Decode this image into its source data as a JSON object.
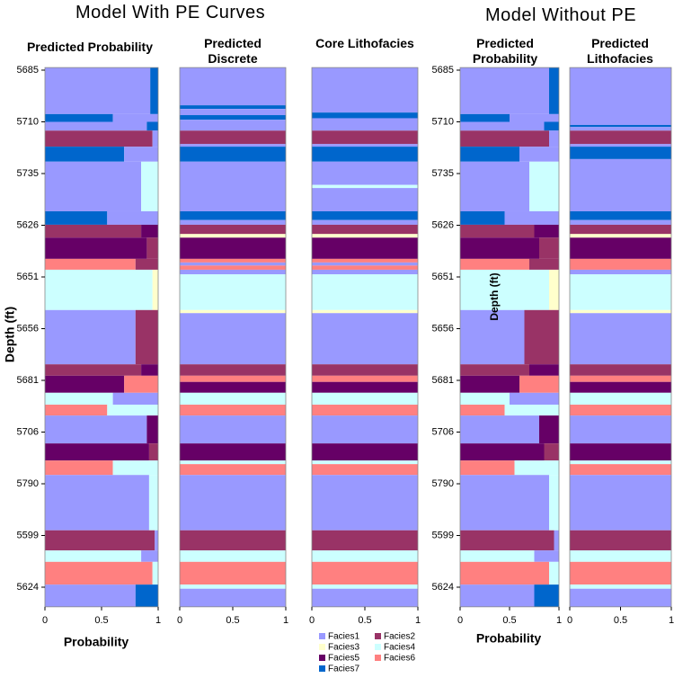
{
  "chart_data": {
    "type": "facies-log",
    "left_title": "Model With PE Curves",
    "right_title": "Model Without PE",
    "y_axis_label": "Depth (ft)",
    "x_axis_label": "Probability",
    "depth_labels": [
      "5685",
      "5710",
      "5735",
      "5626",
      "5651",
      "5656",
      "5681",
      "5706",
      "5790",
      "5599",
      "5624"
    ],
    "xlim": [
      0,
      1
    ],
    "xticks": [
      0,
      0.5,
      1
    ],
    "facies": [
      {
        "name": "Facies1",
        "color": "#9999ff"
      },
      {
        "name": "Facies2",
        "color": "#993366"
      },
      {
        "name": "Facies3",
        "color": "#ffffcc"
      },
      {
        "name": "Facies4",
        "color": "#ccffff"
      },
      {
        "name": "Facies5",
        "color": "#660066"
      },
      {
        "name": "Facies6",
        "color": "#ff8080"
      },
      {
        "name": "Facies7",
        "color": "#0066cc"
      }
    ],
    "panels": [
      {
        "title": "Predicted Probability",
        "kind": "probability",
        "bands": [
          [
            0,
            -0.05,
            0.85,
            0.93,
            6
          ],
          [
            6,
            0.85,
            1.0,
            0.6,
            0
          ],
          [
            0,
            1.0,
            1.17,
            0.9,
            6
          ],
          [
            1,
            1.17,
            1.48,
            0.95,
            0
          ],
          [
            6,
            1.48,
            1.77,
            0.7,
            0
          ],
          [
            0,
            1.77,
            2.73,
            0.85,
            3
          ],
          [
            6,
            2.73,
            2.99,
            0.55,
            0
          ],
          [
            1,
            2.99,
            3.24,
            0.85,
            4
          ],
          [
            4,
            3.24,
            3.65,
            0.9,
            1
          ],
          [
            5,
            3.65,
            3.86,
            0.8,
            1
          ],
          [
            3,
            3.86,
            4.64,
            0.95,
            2
          ],
          [
            0,
            4.64,
            5.69,
            0.8,
            1
          ],
          [
            1,
            5.69,
            5.91,
            0.85,
            4
          ],
          [
            4,
            5.91,
            6.24,
            0.7,
            5
          ],
          [
            3,
            6.24,
            6.47,
            0.6,
            0
          ],
          [
            5,
            6.47,
            6.68,
            0.55,
            3
          ],
          [
            0,
            6.68,
            7.22,
            0.9,
            4
          ],
          [
            4,
            7.22,
            7.55,
            0.92,
            1
          ],
          [
            5,
            7.55,
            7.83,
            0.6,
            3
          ],
          [
            0,
            7.83,
            8.9,
            0.92,
            3
          ],
          [
            1,
            8.9,
            9.29,
            0.97,
            0
          ],
          [
            3,
            9.29,
            9.51,
            0.85,
            0
          ],
          [
            5,
            9.51,
            9.95,
            0.95,
            3
          ],
          [
            0,
            9.95,
            10.38,
            0.8,
            6
          ]
        ]
      },
      {
        "title": "Predicted Discrete",
        "kind": "discrete",
        "bands": [
          [
            0,
            -0.05,
            0.68
          ],
          [
            6,
            0.68,
            0.75
          ],
          [
            0,
            0.75,
            0.87
          ],
          [
            6,
            0.87,
            0.96
          ],
          [
            0,
            0.96,
            1.17
          ],
          [
            1,
            1.17,
            1.43
          ],
          [
            0,
            1.43,
            1.48
          ],
          [
            6,
            1.48,
            1.77
          ],
          [
            0,
            1.77,
            2.73
          ],
          [
            6,
            2.73,
            2.9
          ],
          [
            0,
            2.9,
            2.99
          ],
          [
            1,
            2.99,
            3.17
          ],
          [
            2,
            3.17,
            3.24
          ],
          [
            4,
            3.24,
            3.65
          ],
          [
            5,
            3.65,
            3.72
          ],
          [
            0,
            3.72,
            3.78
          ],
          [
            5,
            3.78,
            3.86
          ],
          [
            0,
            3.86,
            3.95
          ],
          [
            3,
            3.95,
            4.64
          ],
          [
            2,
            4.64,
            4.7
          ],
          [
            0,
            4.7,
            5.69
          ],
          [
            1,
            5.69,
            5.91
          ],
          [
            5,
            5.91,
            6.03
          ],
          [
            4,
            6.03,
            6.24
          ],
          [
            3,
            6.24,
            6.47
          ],
          [
            5,
            6.47,
            6.68
          ],
          [
            0,
            6.68,
            7.22
          ],
          [
            4,
            7.22,
            7.55
          ],
          [
            3,
            7.55,
            7.62
          ],
          [
            5,
            7.62,
            7.83
          ],
          [
            0,
            7.83,
            8.9
          ],
          [
            1,
            8.9,
            9.29
          ],
          [
            3,
            9.29,
            9.51
          ],
          [
            5,
            9.51,
            9.95
          ],
          [
            3,
            9.95,
            10.03
          ],
          [
            0,
            10.03,
            10.38
          ]
        ]
      },
      {
        "title": "Core Lithofacies",
        "kind": "discrete",
        "bands": [
          [
            0,
            -0.05,
            0.82
          ],
          [
            6,
            0.82,
            0.93
          ],
          [
            0,
            0.93,
            1.17
          ],
          [
            1,
            1.17,
            1.43
          ],
          [
            0,
            1.43,
            1.48
          ],
          [
            6,
            1.48,
            1.77
          ],
          [
            0,
            1.77,
            2.22
          ],
          [
            3,
            2.22,
            2.28
          ],
          [
            0,
            2.28,
            2.73
          ],
          [
            6,
            2.73,
            2.9
          ],
          [
            0,
            2.9,
            2.99
          ],
          [
            1,
            2.99,
            3.17
          ],
          [
            2,
            3.17,
            3.24
          ],
          [
            4,
            3.24,
            3.65
          ],
          [
            5,
            3.65,
            3.72
          ],
          [
            0,
            3.72,
            3.78
          ],
          [
            5,
            3.78,
            3.86
          ],
          [
            0,
            3.86,
            3.95
          ],
          [
            3,
            3.95,
            4.64
          ],
          [
            2,
            4.64,
            4.7
          ],
          [
            0,
            4.7,
            5.69
          ],
          [
            1,
            5.69,
            5.91
          ],
          [
            5,
            5.91,
            6.03
          ],
          [
            4,
            6.03,
            6.24
          ],
          [
            3,
            6.24,
            6.47
          ],
          [
            5,
            6.47,
            6.68
          ],
          [
            0,
            6.68,
            7.22
          ],
          [
            4,
            7.22,
            7.55
          ],
          [
            3,
            7.55,
            7.62
          ],
          [
            5,
            7.62,
            7.83
          ],
          [
            0,
            7.83,
            8.9
          ],
          [
            1,
            8.9,
            9.29
          ],
          [
            3,
            9.29,
            9.51
          ],
          [
            5,
            9.51,
            9.95
          ],
          [
            3,
            9.95,
            10.03
          ],
          [
            0,
            10.03,
            10.38
          ]
        ]
      },
      {
        "title": "Predicted Probability",
        "kind": "probability",
        "bands": [
          [
            0,
            -0.05,
            0.85,
            0.9,
            6
          ],
          [
            6,
            0.85,
            1.0,
            0.5,
            0
          ],
          [
            0,
            1.0,
            1.17,
            0.85,
            6
          ],
          [
            1,
            1.17,
            1.48,
            0.9,
            0
          ],
          [
            6,
            1.48,
            1.77,
            0.6,
            0
          ],
          [
            0,
            1.77,
            2.73,
            0.7,
            3
          ],
          [
            6,
            2.73,
            2.99,
            0.45,
            0
          ],
          [
            1,
            2.99,
            3.24,
            0.75,
            4
          ],
          [
            4,
            3.24,
            3.65,
            0.8,
            1
          ],
          [
            5,
            3.65,
            3.86,
            0.7,
            1
          ],
          [
            3,
            3.86,
            4.64,
            0.9,
            2
          ],
          [
            0,
            4.64,
            5.69,
            0.65,
            1
          ],
          [
            1,
            5.69,
            5.91,
            0.7,
            4
          ],
          [
            4,
            5.91,
            6.24,
            0.6,
            5
          ],
          [
            3,
            6.24,
            6.47,
            0.5,
            0
          ],
          [
            5,
            6.47,
            6.68,
            0.45,
            3
          ],
          [
            0,
            6.68,
            7.22,
            0.8,
            4
          ],
          [
            4,
            7.22,
            7.55,
            0.85,
            1
          ],
          [
            5,
            7.55,
            7.83,
            0.55,
            3
          ],
          [
            0,
            7.83,
            8.9,
            0.9,
            3
          ],
          [
            1,
            8.9,
            9.29,
            0.95,
            0
          ],
          [
            3,
            9.29,
            9.51,
            0.75,
            0
          ],
          [
            5,
            9.51,
            9.95,
            0.9,
            3
          ],
          [
            0,
            9.95,
            10.38,
            0.75,
            6
          ]
        ]
      },
      {
        "title": "Predicted Lithofacies",
        "kind": "discrete",
        "bands": [
          [
            0,
            -0.05,
            1.06
          ],
          [
            6,
            1.06,
            1.1
          ],
          [
            0,
            1.1,
            1.17
          ],
          [
            1,
            1.17,
            1.43
          ],
          [
            0,
            1.43,
            1.48
          ],
          [
            6,
            1.48,
            1.72
          ],
          [
            0,
            1.72,
            2.73
          ],
          [
            6,
            2.73,
            2.9
          ],
          [
            0,
            2.9,
            2.99
          ],
          [
            1,
            2.99,
            3.17
          ],
          [
            2,
            3.17,
            3.24
          ],
          [
            4,
            3.24,
            3.65
          ],
          [
            5,
            3.65,
            3.86
          ],
          [
            0,
            3.86,
            3.95
          ],
          [
            3,
            3.95,
            4.64
          ],
          [
            2,
            4.64,
            4.7
          ],
          [
            0,
            4.7,
            5.69
          ],
          [
            1,
            5.69,
            5.91
          ],
          [
            5,
            5.91,
            6.03
          ],
          [
            4,
            6.03,
            6.24
          ],
          [
            3,
            6.24,
            6.47
          ],
          [
            5,
            6.47,
            6.68
          ],
          [
            0,
            6.68,
            7.22
          ],
          [
            4,
            7.22,
            7.55
          ],
          [
            3,
            7.55,
            7.62
          ],
          [
            5,
            7.62,
            7.83
          ],
          [
            0,
            7.83,
            8.9
          ],
          [
            1,
            8.9,
            9.29
          ],
          [
            3,
            9.29,
            9.51
          ],
          [
            5,
            9.51,
            9.95
          ],
          [
            3,
            9.95,
            10.03
          ],
          [
            0,
            10.03,
            10.38
          ]
        ]
      }
    ]
  }
}
